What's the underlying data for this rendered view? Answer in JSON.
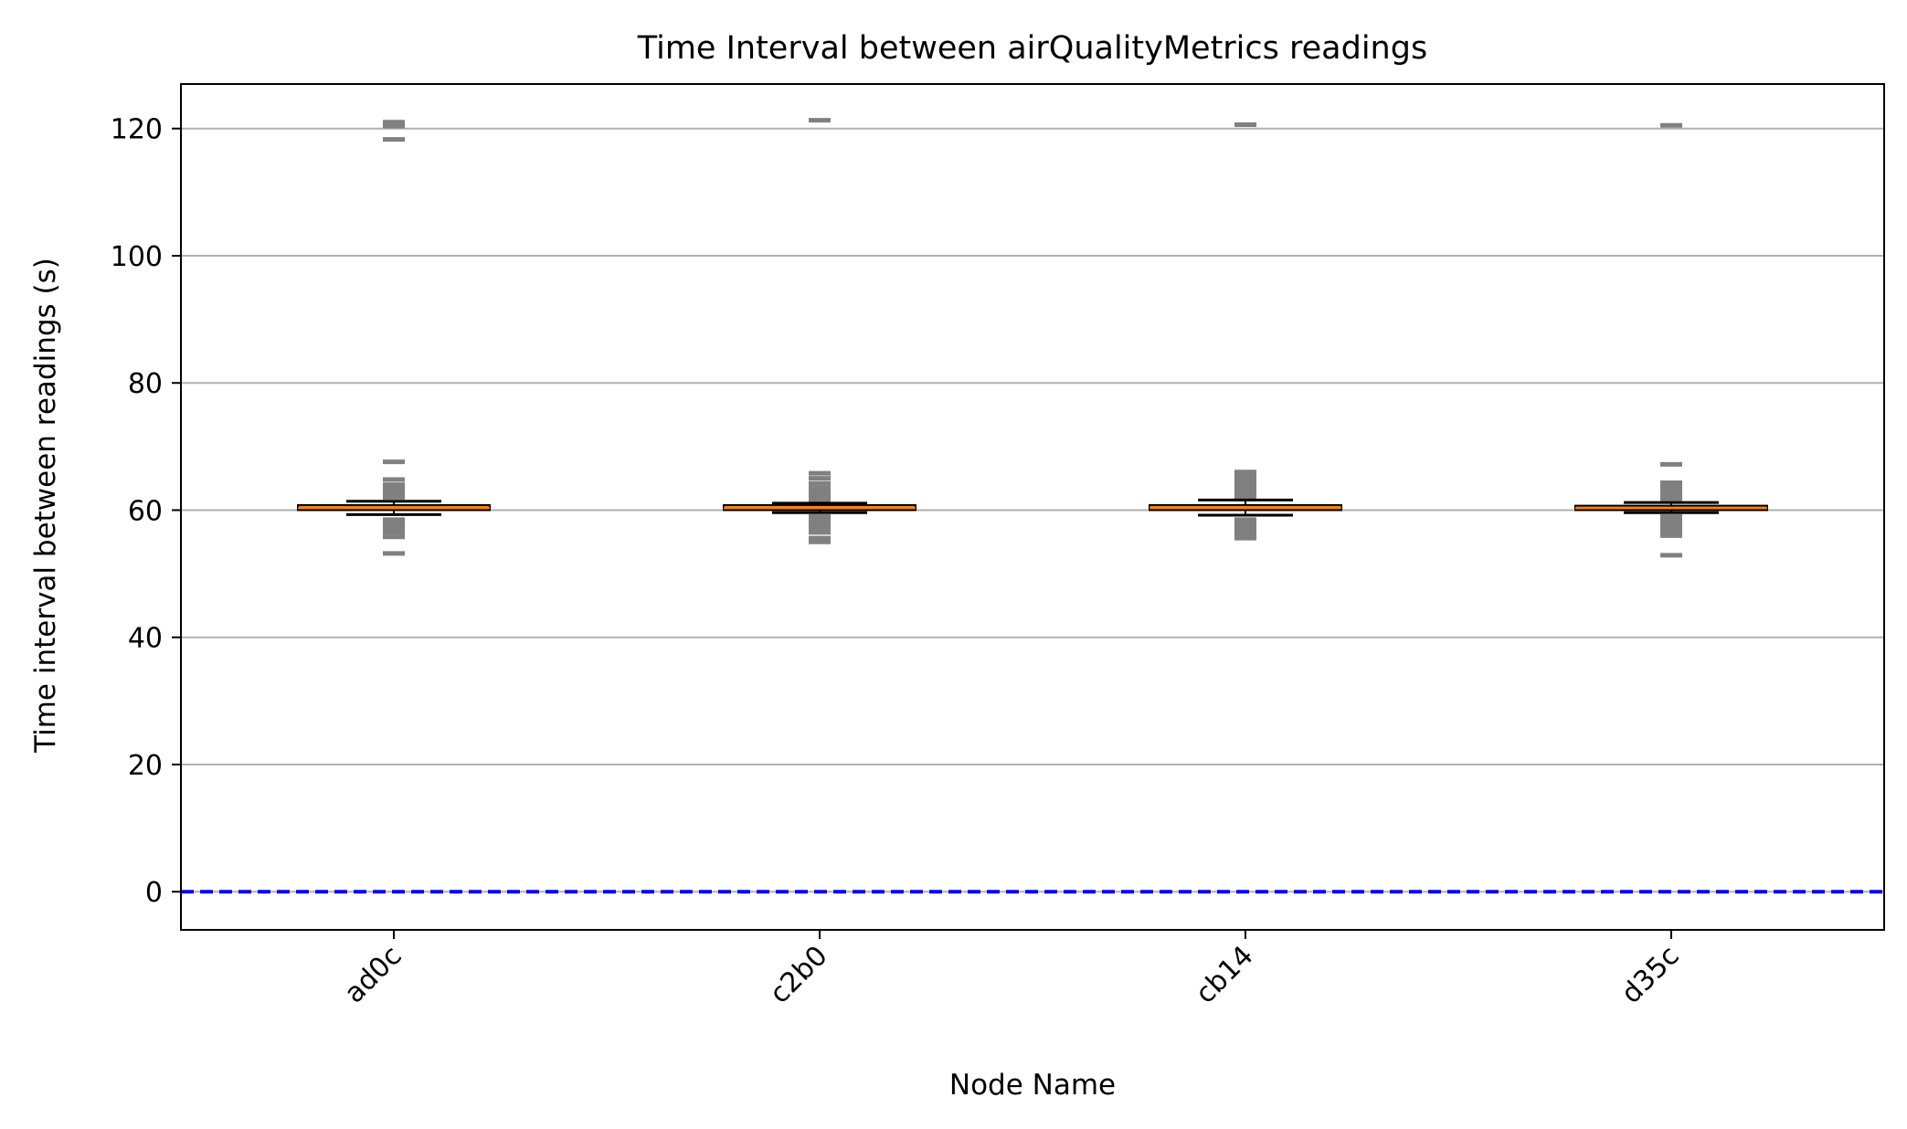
{
  "chart_data": {
    "type": "box",
    "title": "Time Interval between airQualityMetrics readings",
    "xlabel": "Node Name",
    "ylabel": "Time interval between readings (s)",
    "ylim": [
      -6,
      127
    ],
    "yticks": [
      0,
      20,
      40,
      60,
      80,
      100,
      120
    ],
    "grid": "horizontal",
    "reference_line": {
      "y": 0,
      "color": "#0000ff",
      "style": "dashed"
    },
    "colors": {
      "box_fill": "#ff7f0e",
      "median": "#ff7f0e",
      "box_edge": "#000000",
      "flier": "#808080",
      "grid": "#b0b0b0"
    },
    "categories": [
      "ad0c",
      "c2b0",
      "cb14",
      "d35c"
    ],
    "boxes": [
      {
        "name": "ad0c",
        "whislo": 59.3,
        "q1": 60.0,
        "med": 60.3,
        "q3": 60.8,
        "whishi": 61.4,
        "fliers": [
          53.2,
          55.8,
          56.5,
          57.0,
          57.5,
          58.0,
          58.5,
          62.0,
          62.5,
          63.0,
          63.5,
          64.0,
          64.8,
          67.6,
          118.3,
          120.4,
          121.0
        ]
      },
      {
        "name": "c2b0",
        "whislo": 59.6,
        "q1": 60.0,
        "med": 60.3,
        "q3": 60.8,
        "whishi": 61.1,
        "fliers": [
          55.0,
          55.6,
          56.5,
          57.0,
          57.5,
          58.0,
          58.5,
          59.0,
          61.6,
          62.0,
          62.5,
          63.0,
          63.5,
          64.2,
          65.0,
          65.8,
          121.3
        ]
      },
      {
        "name": "cb14",
        "whislo": 59.2,
        "q1": 60.0,
        "med": 60.4,
        "q3": 60.8,
        "whishi": 61.6,
        "fliers": [
          55.6,
          56.0,
          56.5,
          57.0,
          57.5,
          58.0,
          58.5,
          62.0,
          62.5,
          63.0,
          63.5,
          64.0,
          64.5,
          65.0,
          65.5,
          66.0,
          120.6
        ]
      },
      {
        "name": "d35c",
        "whislo": 59.6,
        "q1": 60.0,
        "med": 60.3,
        "q3": 60.7,
        "whishi": 61.2,
        "fliers": [
          52.9,
          56.0,
          56.5,
          57.0,
          57.5,
          58.0,
          58.5,
          59.0,
          61.8,
          62.3,
          62.8,
          63.3,
          63.8,
          64.3,
          67.2,
          120.5
        ]
      }
    ]
  }
}
